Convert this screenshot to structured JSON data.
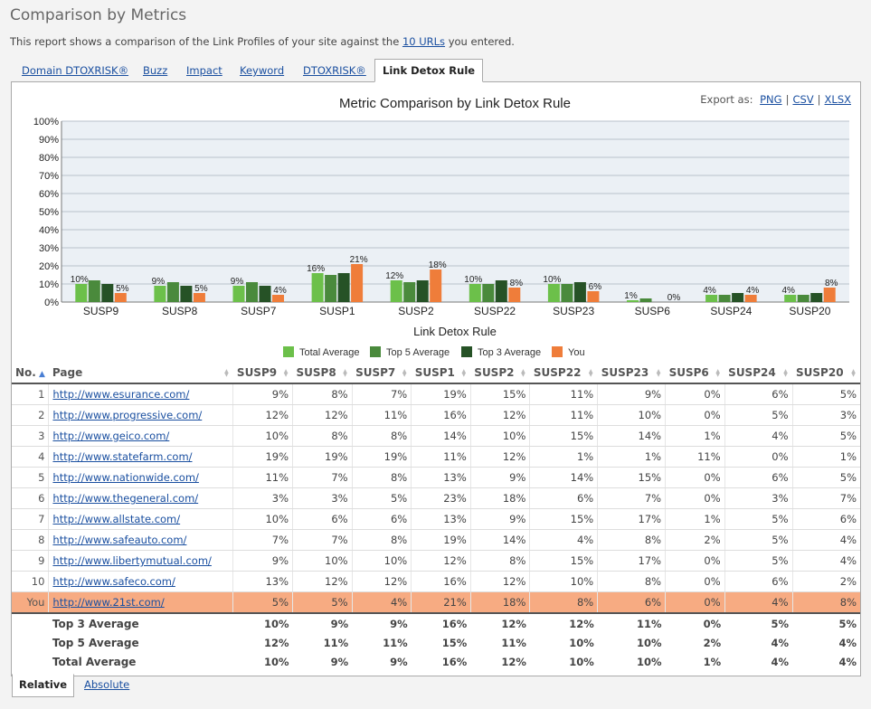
{
  "page": {
    "title": "Comparison by Metrics",
    "intro_before": "This report shows a comparison of the Link Profiles of your site against the ",
    "intro_link": "10 URLs",
    "intro_after": " you entered."
  },
  "tabs": [
    "Domain DTOXRISK®",
    "Buzz",
    "Impact",
    "Keyword",
    "DTOXRISK®",
    "Link Detox Rule"
  ],
  "active_tab": "Link Detox Rule",
  "export": {
    "label": "Export as:",
    "options": [
      "PNG",
      "CSV",
      "XLSX"
    ]
  },
  "chart_data": {
    "type": "bar",
    "title": "Metric Comparison by Link Detox Rule",
    "xlabel": "Link Detox Rule",
    "ylabel": "",
    "ylim": [
      0,
      100
    ],
    "yticks": [
      "0%",
      "10%",
      "20%",
      "30%",
      "40%",
      "50%",
      "60%",
      "70%",
      "80%",
      "90%",
      "100%"
    ],
    "grid": true,
    "legend_position": "bottom",
    "categories": [
      "SUSP9",
      "SUSP8",
      "SUSP7",
      "SUSP1",
      "SUSP2",
      "SUSP22",
      "SUSP23",
      "SUSP6",
      "SUSP24",
      "SUSP20"
    ],
    "series": [
      {
        "name": "Total Average",
        "color": "#6cc04a",
        "values": [
          10,
          9,
          9,
          16,
          12,
          10,
          10,
          1,
          4,
          4
        ],
        "labels": [
          "10%",
          "9%",
          "9%",
          "16%",
          "12%",
          "10%",
          "10%",
          "1%",
          "4%",
          "4%"
        ]
      },
      {
        "name": "Top 5 Average",
        "color": "#4a8a3c",
        "values": [
          12,
          11,
          11,
          15,
          11,
          10,
          10,
          2,
          4,
          4
        ],
        "labels": []
      },
      {
        "name": "Top 3 Average",
        "color": "#265226",
        "values": [
          10,
          9,
          9,
          16,
          12,
          12,
          11,
          0,
          5,
          5
        ],
        "labels": []
      },
      {
        "name": "You",
        "color": "#ef7d3a",
        "values": [
          5,
          5,
          4,
          21,
          18,
          8,
          6,
          0,
          4,
          8
        ],
        "labels": [
          "5%",
          "5%",
          "4%",
          "21%",
          "18%",
          "8%",
          "6%",
          "0%",
          "4%",
          "8%"
        ]
      }
    ]
  },
  "table": {
    "headers": [
      "No.",
      "Page",
      "SUSP9",
      "SUSP8",
      "SUSP7",
      "SUSP1",
      "SUSP2",
      "SUSP22",
      "SUSP23",
      "SUSP6",
      "SUSP24",
      "SUSP20"
    ],
    "rows": [
      {
        "no": "1",
        "page": "http://www.esurance.com/",
        "values": [
          "9%",
          "8%",
          "7%",
          "19%",
          "15%",
          "11%",
          "9%",
          "0%",
          "6%",
          "5%"
        ]
      },
      {
        "no": "2",
        "page": "http://www.progressive.com/",
        "values": [
          "12%",
          "12%",
          "11%",
          "16%",
          "12%",
          "11%",
          "10%",
          "0%",
          "5%",
          "3%"
        ]
      },
      {
        "no": "3",
        "page": "http://www.geico.com/",
        "values": [
          "10%",
          "8%",
          "8%",
          "14%",
          "10%",
          "15%",
          "14%",
          "1%",
          "4%",
          "5%"
        ]
      },
      {
        "no": "4",
        "page": "http://www.statefarm.com/",
        "values": [
          "19%",
          "19%",
          "19%",
          "11%",
          "12%",
          "1%",
          "1%",
          "11%",
          "0%",
          "1%"
        ]
      },
      {
        "no": "5",
        "page": "http://www.nationwide.com/",
        "values": [
          "11%",
          "7%",
          "8%",
          "13%",
          "9%",
          "14%",
          "15%",
          "0%",
          "6%",
          "5%"
        ]
      },
      {
        "no": "6",
        "page": "http://www.thegeneral.com/",
        "values": [
          "3%",
          "3%",
          "5%",
          "23%",
          "18%",
          "6%",
          "7%",
          "0%",
          "3%",
          "7%"
        ]
      },
      {
        "no": "7",
        "page": "http://www.allstate.com/",
        "values": [
          "10%",
          "6%",
          "6%",
          "13%",
          "9%",
          "15%",
          "17%",
          "1%",
          "5%",
          "6%"
        ]
      },
      {
        "no": "8",
        "page": "http://www.safeauto.com/",
        "values": [
          "7%",
          "7%",
          "8%",
          "19%",
          "14%",
          "4%",
          "8%",
          "2%",
          "5%",
          "4%"
        ]
      },
      {
        "no": "9",
        "page": "http://www.libertymutual.com/",
        "values": [
          "9%",
          "10%",
          "10%",
          "12%",
          "8%",
          "15%",
          "17%",
          "0%",
          "5%",
          "4%"
        ]
      },
      {
        "no": "10",
        "page": "http://www.safeco.com/",
        "values": [
          "13%",
          "12%",
          "12%",
          "16%",
          "12%",
          "10%",
          "8%",
          "0%",
          "6%",
          "2%"
        ]
      }
    ],
    "you_row": {
      "no": "You",
      "page": "http://www.21st.com/",
      "values": [
        "5%",
        "5%",
        "4%",
        "21%",
        "18%",
        "8%",
        "6%",
        "0%",
        "4%",
        "8%"
      ]
    },
    "summary": [
      {
        "label": "Top 3 Average",
        "values": [
          "10%",
          "9%",
          "9%",
          "16%",
          "12%",
          "12%",
          "11%",
          "0%",
          "5%",
          "5%"
        ]
      },
      {
        "label": "Top 5 Average",
        "values": [
          "12%",
          "11%",
          "11%",
          "15%",
          "11%",
          "10%",
          "10%",
          "2%",
          "4%",
          "4%"
        ]
      },
      {
        "label": "Total Average",
        "values": [
          "10%",
          "9%",
          "9%",
          "16%",
          "12%",
          "10%",
          "10%",
          "1%",
          "4%",
          "4%"
        ]
      }
    ]
  },
  "bottom_tabs": [
    "Relative",
    "Absolute"
  ],
  "active_bottom_tab": "Relative"
}
